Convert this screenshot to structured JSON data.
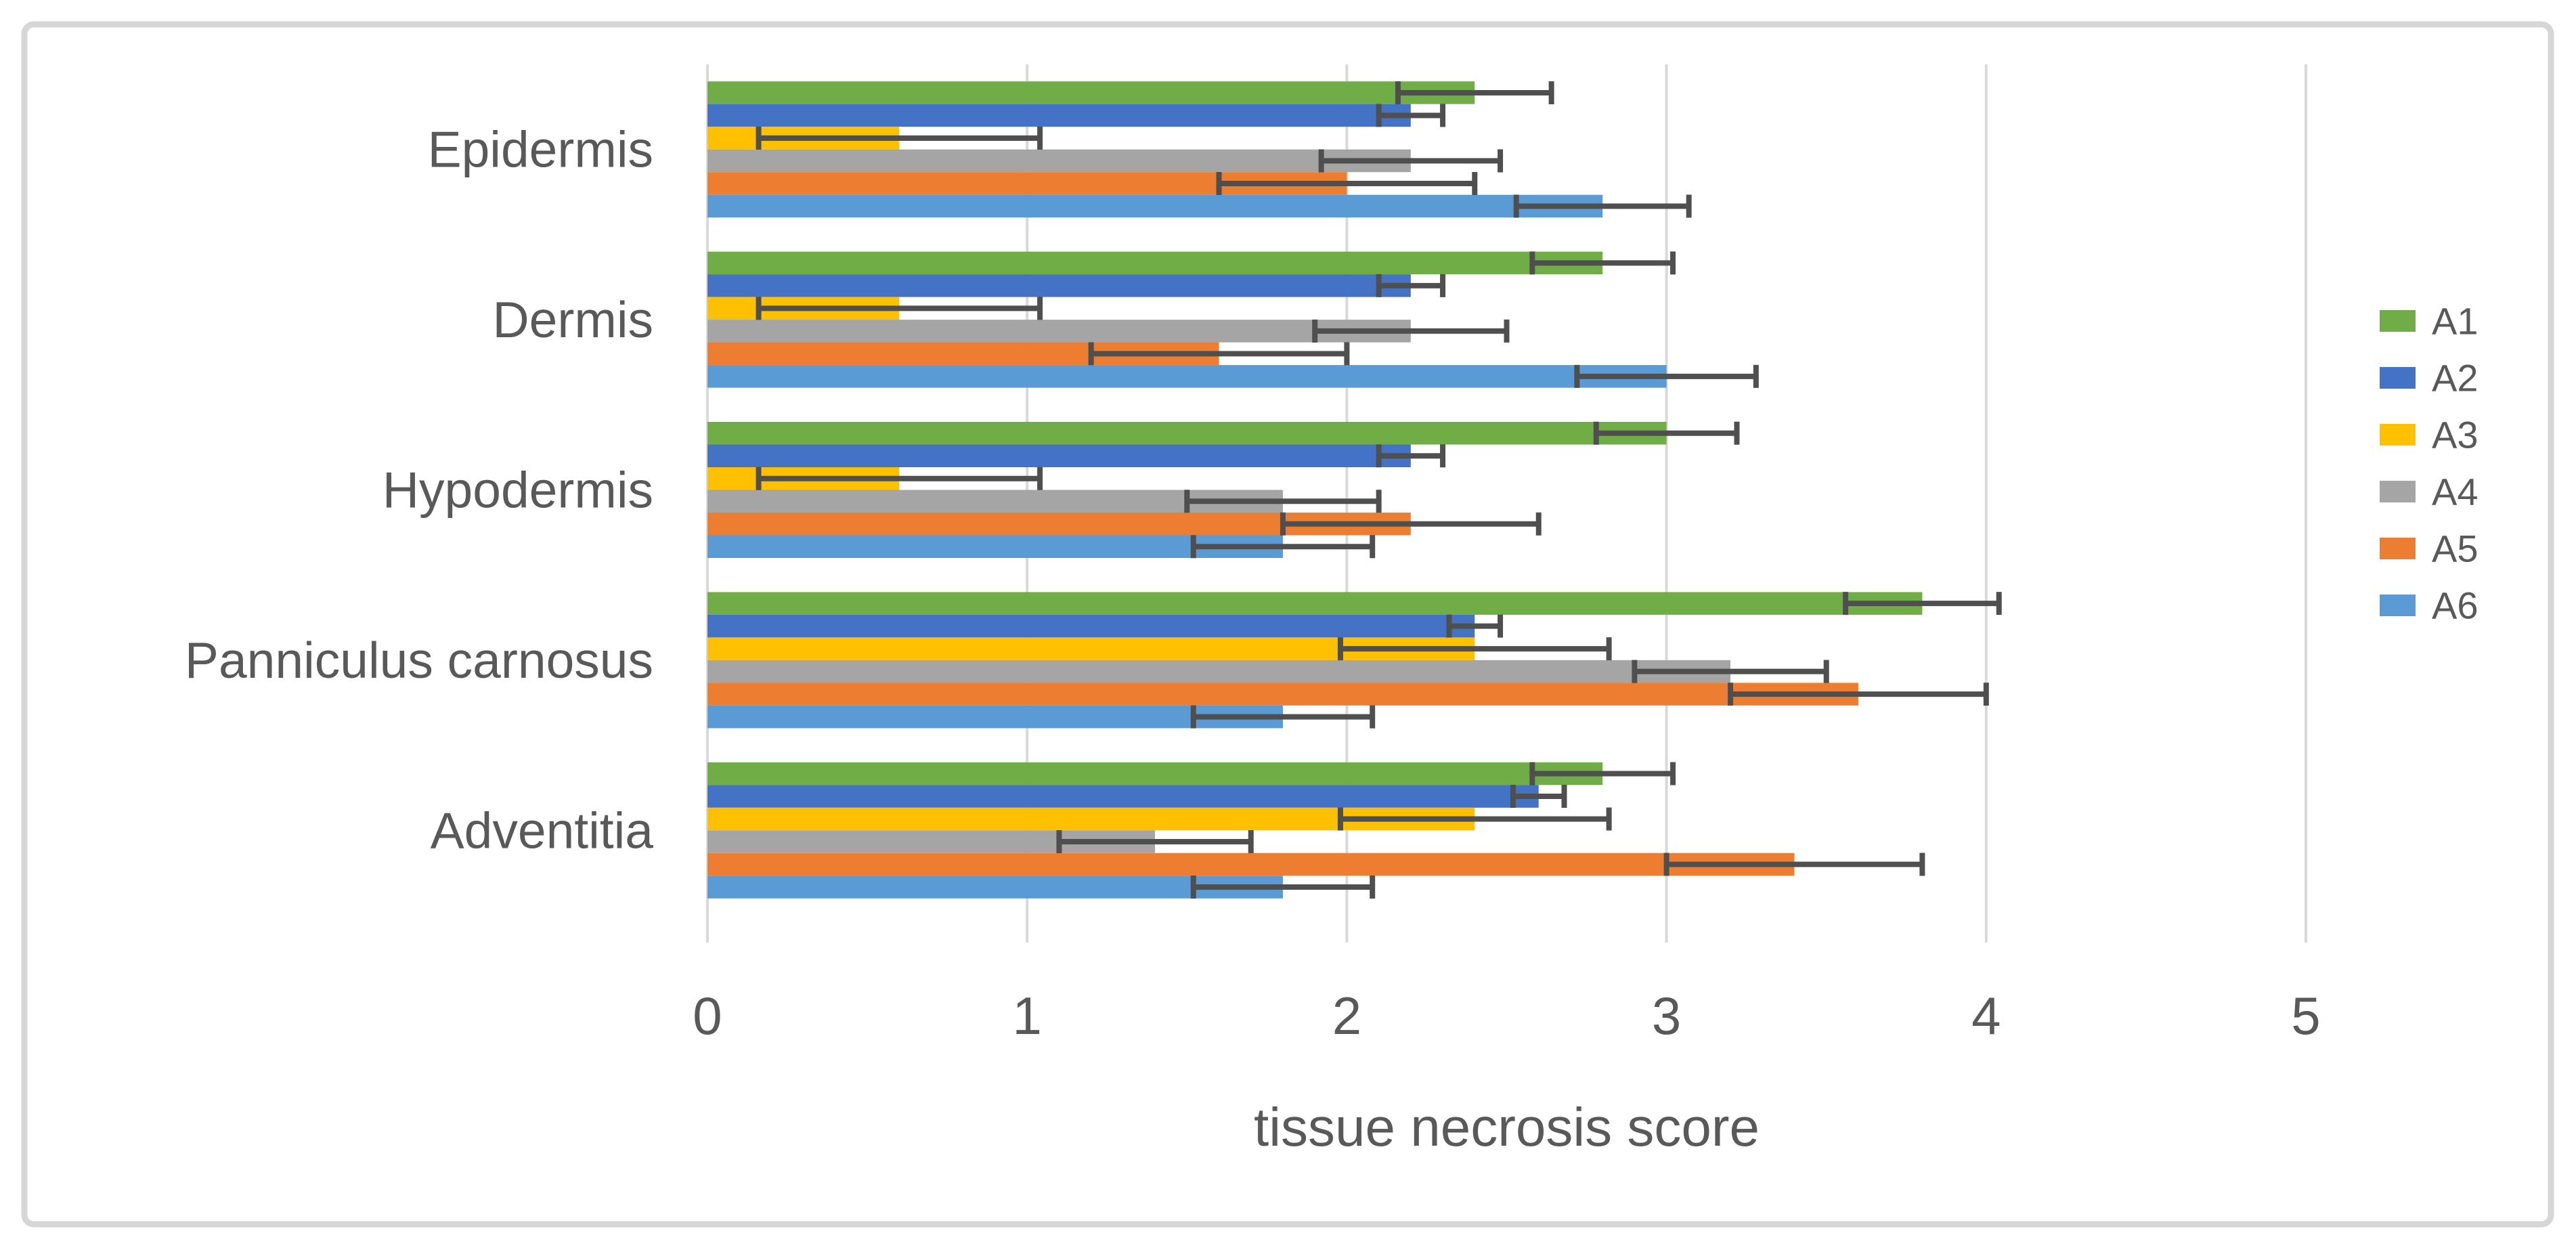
{
  "chart_data": {
    "type": "bar",
    "orientation": "horizontal",
    "title": "",
    "xlabel": "tissue necrosis score",
    "ylabel": "",
    "xlim": [
      0,
      5
    ],
    "x_ticks": [
      0,
      1,
      2,
      3,
      4,
      5
    ],
    "grid": true,
    "legend_position": "right",
    "error_bars": true,
    "categories": [
      "Epidermis",
      "Dermis",
      "Hypodermis",
      "Panniculus carnosus",
      "Adventitia"
    ],
    "series": [
      {
        "name": "A1",
        "color": "#70AD47",
        "values": [
          2.4,
          2.8,
          3.0,
          3.8,
          2.8
        ],
        "errors": [
          0.24,
          0.22,
          0.22,
          0.24,
          0.22
        ]
      },
      {
        "name": "A2",
        "color": "#4472C4",
        "values": [
          2.2,
          2.2,
          2.2,
          2.4,
          2.6
        ],
        "errors": [
          0.1,
          0.1,
          0.1,
          0.08,
          0.08
        ]
      },
      {
        "name": "A3",
        "color": "#FFC000",
        "values": [
          0.6,
          0.6,
          0.6,
          2.4,
          2.4
        ],
        "errors": [
          0.44,
          0.44,
          0.44,
          0.42,
          0.42
        ]
      },
      {
        "name": "A4",
        "color": "#A5A5A5",
        "values": [
          2.2,
          2.2,
          1.8,
          3.2,
          1.4
        ],
        "errors": [
          0.28,
          0.3,
          0.3,
          0.3,
          0.3
        ]
      },
      {
        "name": "A5",
        "color": "#ED7D31",
        "values": [
          2.0,
          1.6,
          2.2,
          3.6,
          3.4
        ],
        "errors": [
          0.4,
          0.4,
          0.4,
          0.4,
          0.4
        ]
      },
      {
        "name": "A6",
        "color": "#5B9BD5",
        "values": [
          2.8,
          3.0,
          1.8,
          1.8,
          1.8
        ],
        "errors": [
          0.27,
          0.28,
          0.28,
          0.28,
          0.28
        ]
      }
    ]
  },
  "legend": {
    "items": [
      "A1",
      "A2",
      "A3",
      "A4",
      "A5",
      "A6"
    ]
  },
  "styles": {
    "background": "#FFFFFF",
    "border_color": "#D6D6D6",
    "gridline_color": "#D9D9D9",
    "tick_color": "#D9D9D9",
    "text_color": "#595959",
    "error_bar_color": "#4F4F4F"
  }
}
